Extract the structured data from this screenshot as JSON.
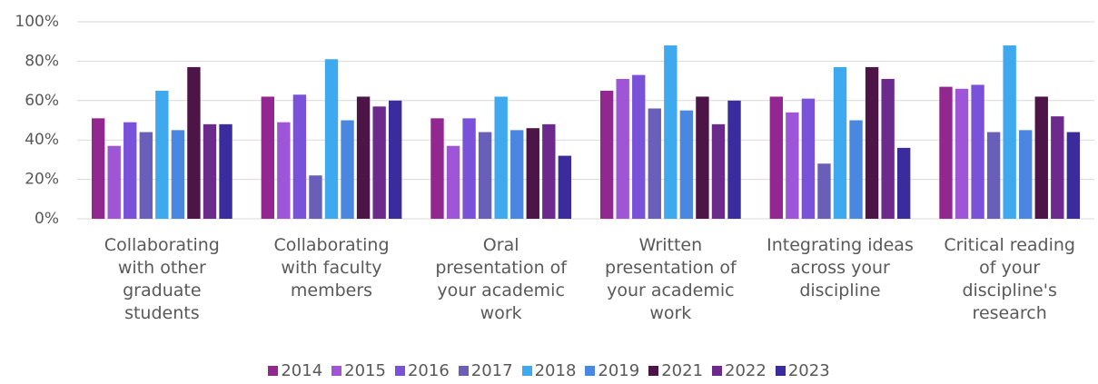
{
  "chart_data": {
    "type": "bar",
    "categories": [
      "Collaborating with other graduate students",
      "Collaborating with faculty members",
      "Oral presentation of your academic work",
      "Written presentation of your academic work",
      "Integrating ideas across your discipline",
      "Critical reading of your discipline's research"
    ],
    "series": [
      {
        "name": "2014",
        "color": "#92278f",
        "values": [
          51,
          62,
          51,
          65,
          62,
          67
        ]
      },
      {
        "name": "2015",
        "color": "#9e55d6",
        "values": [
          37,
          49,
          37,
          71,
          54,
          66
        ]
      },
      {
        "name": "2016",
        "color": "#7a52da",
        "values": [
          49,
          63,
          51,
          73,
          61,
          68
        ]
      },
      {
        "name": "2017",
        "color": "#6a5fb8",
        "values": [
          44,
          22,
          44,
          56,
          28,
          44
        ]
      },
      {
        "name": "2018",
        "color": "#3fa9f0",
        "values": [
          65,
          81,
          62,
          88,
          77,
          88
        ]
      },
      {
        "name": "2019",
        "color": "#4a87e0",
        "values": [
          45,
          50,
          45,
          55,
          50,
          45
        ]
      },
      {
        "name": "2021",
        "color": "#4d1547",
        "values": [
          77,
          62,
          46,
          62,
          77,
          62
        ]
      },
      {
        "name": "2022",
        "color": "#6b2a8c",
        "values": [
          48,
          57,
          48,
          48,
          71,
          52
        ]
      },
      {
        "name": "2023",
        "color": "#3a2c9c",
        "values": [
          48,
          60,
          32,
          60,
          36,
          44
        ]
      }
    ],
    "ylim": [
      0,
      100
    ],
    "yticks": [
      {
        "value": 0,
        "label": "0%"
      },
      {
        "value": 20,
        "label": "20%"
      },
      {
        "value": 40,
        "label": "40%"
      },
      {
        "value": 60,
        "label": "60%"
      },
      {
        "value": 80,
        "label": "80%"
      },
      {
        "value": 100,
        "label": "100%"
      }
    ],
    "grid": true,
    "legend": "bottom"
  }
}
